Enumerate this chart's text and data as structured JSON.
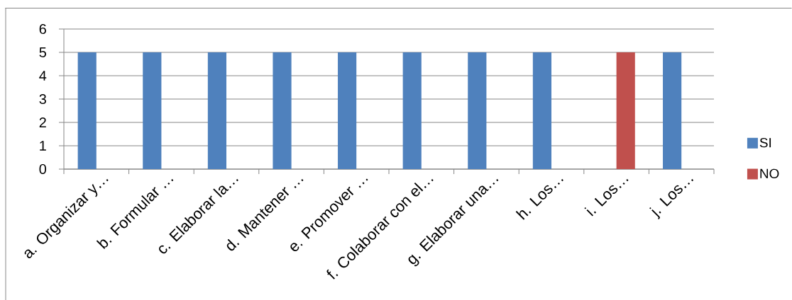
{
  "chart_data": {
    "type": "bar",
    "categories": [
      "a. Organizar y…",
      "b. Formular …",
      "c. Elaborar la…",
      "d. Mantener …",
      "e.  Promover …",
      "f. Colaborar con el…",
      "g. Elaborar una…",
      "h. Los…",
      "i. Los…",
      "j. Los…"
    ],
    "series": [
      {
        "name": "SI",
        "color": "#4f81bd",
        "values": [
          5,
          5,
          5,
          5,
          5,
          5,
          5,
          5,
          null,
          5
        ]
      },
      {
        "name": "NO",
        "color": "#c0504d",
        "values": [
          null,
          null,
          null,
          null,
          null,
          null,
          null,
          null,
          5,
          null
        ]
      }
    ],
    "ylim": [
      0,
      6
    ],
    "yticks": [
      0,
      1,
      2,
      3,
      4,
      5,
      6
    ],
    "grid": "y",
    "legend": "right"
  }
}
